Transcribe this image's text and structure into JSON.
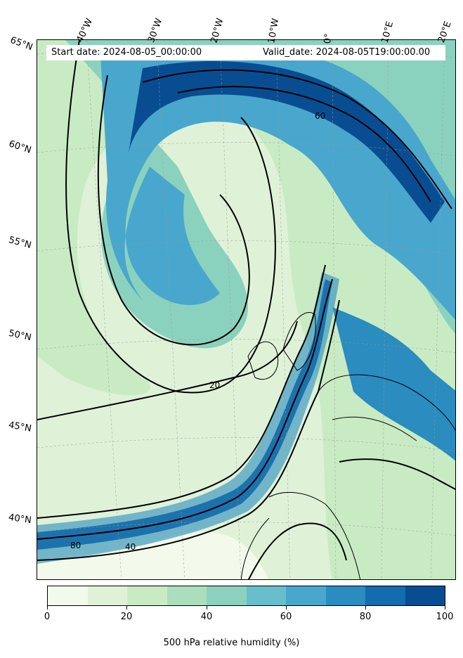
{
  "header": {
    "start_date": "Start date: 2024-08-05_00:00:00",
    "valid_date": "Valid_date: 2024-08-05T19:00:00.00"
  },
  "longitude_labels": [
    "40°W",
    "30°W",
    "20°W",
    "10°W",
    "0°",
    "10°E",
    "20°E"
  ],
  "latitude_labels": [
    "65°N",
    "60°N",
    "55°N",
    "50°N",
    "45°N",
    "40°N"
  ],
  "contour_labels": [
    "20",
    "40",
    "60",
    "80"
  ],
  "colorbar": {
    "title": "500 hPa relative humidity (%)",
    "tick_labels": [
      "0",
      "20",
      "40",
      "60",
      "80",
      "100"
    ],
    "colors": [
      "#f3faeb",
      "#dff2d8",
      "#c9ebc4",
      "#aadebc",
      "#8bd2be",
      "#68bfcb",
      "#49a7cd",
      "#2a8cbf",
      "#136cad",
      "#084d91"
    ]
  }
}
